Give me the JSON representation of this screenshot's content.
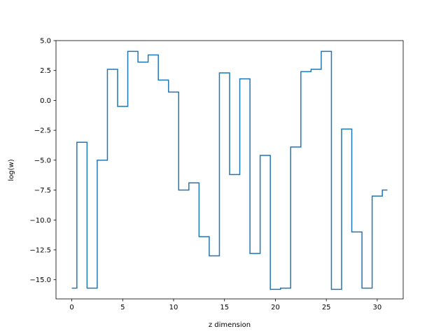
{
  "chart_data": {
    "type": "line",
    "style": "step",
    "title": "",
    "xlabel": "z dimension",
    "ylabel": "log(w)",
    "xlim": [
      -1.55,
      32.55
    ],
    "ylim": [
      -16.6,
      5.0
    ],
    "xticks": [
      0,
      5,
      10,
      15,
      20,
      25,
      30
    ],
    "xtick_labels": [
      "0",
      "5",
      "10",
      "15",
      "20",
      "25",
      "30"
    ],
    "yticks": [
      -15.0,
      -12.5,
      -10.0,
      -7.5,
      -5.0,
      -2.5,
      0.0,
      2.5,
      5.0
    ],
    "ytick_labels": [
      "−15.0",
      "−12.5",
      "−10.0",
      "−7.5",
      "−5.0",
      "−2.5",
      "0.0",
      "2.5",
      "5.0"
    ],
    "grid": false,
    "series": [
      {
        "color": "#1f77b4",
        "x": [
          0,
          1,
          2,
          3,
          4,
          5,
          6,
          7,
          8,
          9,
          10,
          11,
          12,
          13,
          14,
          15,
          16,
          17,
          18,
          19,
          20,
          21,
          22,
          23,
          24,
          25,
          26,
          27,
          28,
          29,
          30,
          31
        ],
        "y": [
          -15.7,
          -3.5,
          -15.7,
          -5.0,
          2.6,
          -0.5,
          4.1,
          3.2,
          3.8,
          1.7,
          0.7,
          -7.5,
          -6.9,
          -11.4,
          -13.0,
          2.3,
          -6.2,
          1.8,
          -12.8,
          -4.6,
          -15.8,
          -15.7,
          -3.9,
          2.4,
          2.6,
          4.1,
          -15.8,
          -2.4,
          -11.0,
          -15.7,
          -8.0,
          -7.5
        ]
      }
    ]
  }
}
